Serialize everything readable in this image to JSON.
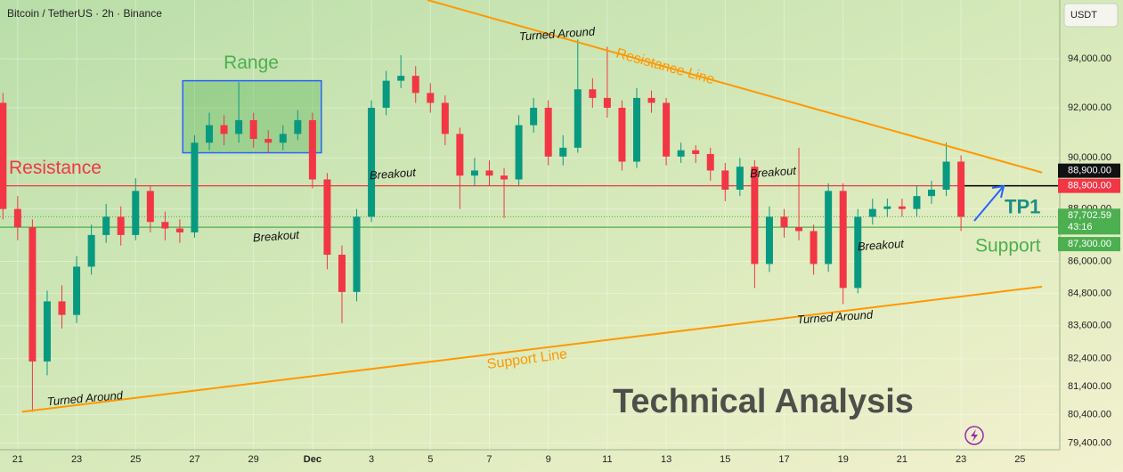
{
  "chart_data": {
    "type": "candlestick",
    "title": "Bitcoin / TetherUS · 2h · Binance",
    "currency": "USDT",
    "watermark": "Technical Analysis",
    "log_scale": true,
    "grid": true,
    "up_color": "#089981",
    "down_color": "#f23645",
    "x": [
      -0.5,
      0,
      0.5,
      1,
      1.5,
      2,
      2.5,
      3,
      3.5,
      4,
      4.5,
      5,
      5.5,
      6,
      6.5,
      7,
      7.5,
      8,
      8.5,
      9,
      9.5,
      10,
      10.5,
      11,
      11.5,
      12,
      12.5,
      13,
      13.5,
      14,
      14.5,
      15,
      15.5,
      16,
      16.5,
      17,
      17.5,
      18,
      18.5,
      19,
      19.5,
      20,
      20.5,
      21,
      21.5,
      22,
      22.5,
      23,
      23.5,
      24,
      24.5,
      25,
      25.5,
      26,
      26.5,
      27,
      27.5,
      28,
      28.5,
      29,
      29.5,
      30,
      30.5,
      31,
      31.5,
      32
    ],
    "open": [
      92200,
      88000,
      87300,
      82300,
      84500,
      84000,
      85800,
      87000,
      87700,
      87000,
      88700,
      87500,
      87250,
      87100,
      90600,
      91300,
      90950,
      91500,
      90750,
      90600,
      90950,
      91500,
      89150,
      86250,
      84850,
      87700,
      92000,
      93100,
      93300,
      92600,
      92200,
      90950,
      89300,
      89500,
      89300,
      89150,
      91300,
      92000,
      90050,
      90400,
      92750,
      92400,
      92000,
      89850,
      92400,
      92200,
      90050,
      90300,
      90150,
      89500,
      88750,
      89650,
      85900,
      87700,
      87300,
      87150,
      85900,
      88700,
      85000,
      87700,
      88000,
      88100,
      88000,
      88500,
      88750,
      89850
    ],
    "high": [
      92600,
      88500,
      87600,
      84900,
      85100,
      86200,
      87400,
      88200,
      88100,
      89200,
      88900,
      87900,
      87600,
      90900,
      91800,
      91700,
      93050,
      91800,
      91100,
      91300,
      91900,
      91800,
      89400,
      86600,
      88000,
      92300,
      93500,
      94150,
      93700,
      93000,
      92500,
      91200,
      90000,
      89900,
      89600,
      91700,
      92400,
      92300,
      90900,
      94800,
      93200,
      94500,
      92300,
      92800,
      92700,
      92400,
      90600,
      90500,
      90400,
      89800,
      90000,
      89900,
      88100,
      88000,
      90400,
      87400,
      89000,
      89000,
      88000,
      88400,
      88400,
      88400,
      88900,
      89100,
      90600,
      90100
    ],
    "low": [
      87600,
      86800,
      80500,
      81800,
      83500,
      83700,
      85500,
      86700,
      86600,
      86800,
      87100,
      86800,
      86700,
      86900,
      90300,
      90500,
      90600,
      90400,
      90200,
      90300,
      90700,
      88800,
      85700,
      83700,
      84500,
      87500,
      91700,
      92800,
      92200,
      91800,
      90500,
      88000,
      88900,
      88900,
      87650,
      88900,
      91000,
      89700,
      89700,
      90200,
      92000,
      91600,
      89500,
      89600,
      91800,
      89700,
      89800,
      89800,
      89100,
      88300,
      88500,
      85000,
      85600,
      86900,
      86800,
      85500,
      85600,
      84400,
      84800,
      87400,
      87700,
      87700,
      87700,
      88200,
      88500,
      87150
    ],
    "close": [
      88000,
      87300,
      82300,
      84500,
      84000,
      85800,
      87000,
      87700,
      87000,
      88700,
      87500,
      87250,
      87100,
      90600,
      91300,
      90950,
      91500,
      90750,
      90600,
      90950,
      91500,
      89150,
      86250,
      84850,
      87700,
      92000,
      93100,
      93300,
      92600,
      92200,
      90950,
      89300,
      89500,
      89300,
      89150,
      91300,
      92000,
      90050,
      90400,
      92750,
      92400,
      92000,
      89850,
      92400,
      92200,
      90050,
      90300,
      90150,
      89500,
      88750,
      89650,
      85900,
      87700,
      87300,
      87150,
      85900,
      88700,
      85000,
      87700,
      88000,
      88100,
      88000,
      88500,
      88750,
      89850,
      87700
    ],
    "xlim": [
      -0.6,
      35.35
    ],
    "xticks": [
      {
        "value": 0,
        "label": "21"
      },
      {
        "value": 2,
        "label": "23"
      },
      {
        "value": 4,
        "label": "25"
      },
      {
        "value": 6,
        "label": "27"
      },
      {
        "value": 8,
        "label": "29"
      },
      {
        "value": 10,
        "label": "Dec"
      },
      {
        "value": 12,
        "label": "3"
      },
      {
        "value": 14,
        "label": "5"
      },
      {
        "value": 16,
        "label": "7"
      },
      {
        "value": 18,
        "label": "9"
      },
      {
        "value": 20,
        "label": "11"
      },
      {
        "value": 22,
        "label": "13"
      },
      {
        "value": 24,
        "label": "15"
      },
      {
        "value": 26,
        "label": "17"
      },
      {
        "value": 28,
        "label": "19"
      },
      {
        "value": 30,
        "label": "21"
      },
      {
        "value": 32,
        "label": "23"
      },
      {
        "value": 34,
        "label": "25"
      }
    ],
    "ylim": [
      79170,
      96460
    ],
    "yticks": [
      {
        "value": 79400,
        "label": "79,400.00"
      },
      {
        "value": 80400,
        "label": "80,400.00"
      },
      {
        "value": 81400,
        "label": "81,400.00"
      },
      {
        "value": 82400,
        "label": "82,400.00"
      },
      {
        "value": 83600,
        "label": "83,600.00"
      },
      {
        "value": 84800,
        "label": "84,800.00"
      },
      {
        "value": 86000,
        "label": "86,000.00"
      },
      {
        "value": 88000,
        "label": "88,000.00"
      },
      {
        "value": 90000,
        "label": "90,000.00"
      },
      {
        "value": 92000,
        "label": "92,000.00"
      },
      {
        "value": 94000,
        "label": "94,000.00"
      }
    ],
    "levels": [
      {
        "name": "Resistance",
        "value": 88900,
        "label": "88,900.00",
        "color": "#f23645"
      },
      {
        "name": "Support",
        "value": 87300,
        "label": "87,300.00",
        "color": "#4caf50"
      }
    ],
    "target": {
      "name": "TP1",
      "value": 88900,
      "label": "88,900.00"
    },
    "current": {
      "value": 87702.59,
      "label": "87,702.59",
      "countdown": "43:16"
    },
    "trendlines": [
      {
        "name": "Resistance Line",
        "x": [
          13.9,
          34.75
        ],
        "y": [
          96460,
          89420
        ],
        "color": "#ff9800"
      },
      {
        "name": "Support Line",
        "x": [
          0.15,
          34.75
        ],
        "y": [
          80500,
          85050
        ],
        "color": "#ff9800"
      }
    ],
    "range": {
      "label": "Range",
      "x": [
        5.6,
        10.3
      ],
      "y": [
        90200,
        93100
      ]
    },
    "annotations": [
      "Turned Around",
      "Breakout",
      "Breakout",
      "Turned Around",
      "Breakout",
      "Turned Around",
      "Breakout"
    ]
  }
}
